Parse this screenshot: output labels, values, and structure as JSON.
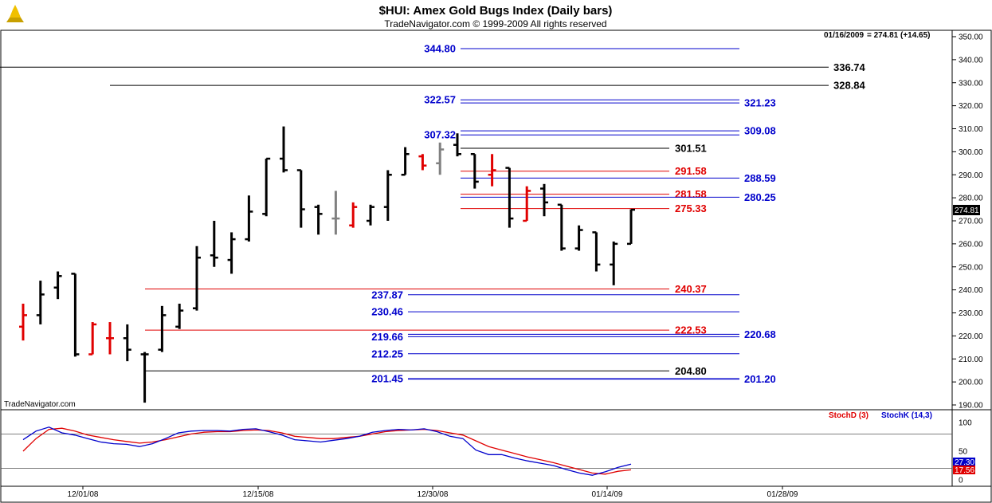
{
  "header": {
    "title": "$HUI:  Amex Gold Bugs Index  (Daily bars)",
    "subtitle": "TradeNavigator.com © 1999-2009 All rights reserved",
    "watermark": "TradeNavigator.com"
  },
  "readout": {
    "date_text": "01/16/2009",
    "value_text": "= 274.81 (+14.65)",
    "last_price_label": "274.81"
  },
  "colors": {
    "up_bar": "#000000",
    "down_bar": "#e00000",
    "neutral_bar": "#808080",
    "blue_level": "#0000cc",
    "red_level": "#e00000",
    "black_level": "#000000",
    "stoch_d": "#e00000",
    "stoch_k": "#0000cc"
  },
  "chart_data": [
    {
      "type": "ohlc",
      "title": "$HUI:  Amex Gold Bugs Index  (Daily bars)",
      "ylim": [
        185,
        353
      ],
      "y_ticks": [
        "350.00",
        "340.00",
        "330.00",
        "320.00",
        "310.00",
        "300.00",
        "290.00",
        "280.00",
        "270.00",
        "260.00",
        "250.00",
        "240.00",
        "230.00",
        "220.00",
        "210.00",
        "200.00",
        "190.00"
      ],
      "x_ticks": [
        "12/01/08",
        "12/15/08",
        "12/30/08",
        "01/14/09",
        "01/28/09"
      ],
      "bars": [
        {
          "o": 224,
          "h": 234,
          "l": 218,
          "c": 229,
          "col": "down"
        },
        {
          "o": 229,
          "h": 244,
          "l": 225,
          "c": 238,
          "col": "up"
        },
        {
          "o": 241,
          "h": 248,
          "l": 236,
          "c": 246,
          "col": "up"
        },
        {
          "o": 247,
          "h": 247,
          "l": 211,
          "c": 212,
          "col": "up"
        },
        {
          "o": 212,
          "h": 226,
          "l": 212,
          "c": 225,
          "col": "down"
        },
        {
          "o": 219,
          "h": 226,
          "l": 212,
          "c": 219,
          "col": "down"
        },
        {
          "o": 219,
          "h": 225,
          "l": 209,
          "c": 214,
          "col": "up"
        },
        {
          "o": 212,
          "h": 213,
          "l": 191,
          "c": 212,
          "col": "up"
        },
        {
          "o": 214,
          "h": 233,
          "l": 213,
          "c": 229,
          "col": "up"
        },
        {
          "o": 224,
          "h": 234,
          "l": 223,
          "c": 231,
          "col": "up"
        },
        {
          "o": 232,
          "h": 259,
          "l": 231,
          "c": 254,
          "col": "up"
        },
        {
          "o": 255,
          "h": 270,
          "l": 250,
          "c": 254,
          "col": "up"
        },
        {
          "o": 253,
          "h": 265,
          "l": 247,
          "c": 262,
          "col": "up"
        },
        {
          "o": 262,
          "h": 281,
          "l": 261,
          "c": 274,
          "col": "up"
        },
        {
          "o": 273,
          "h": 297,
          "l": 272,
          "c": 297,
          "col": "up"
        },
        {
          "o": 297,
          "h": 311,
          "l": 291,
          "c": 292,
          "col": "up"
        },
        {
          "o": 292,
          "h": 292,
          "l": 267,
          "c": 275,
          "col": "up"
        },
        {
          "o": 276,
          "h": 277,
          "l": 264,
          "c": 273,
          "col": "up"
        },
        {
          "o": 271,
          "h": 283,
          "l": 264,
          "c": 271,
          "col": "neutral"
        },
        {
          "o": 268,
          "h": 278,
          "l": 267,
          "c": 276,
          "col": "down"
        },
        {
          "o": 270,
          "h": 277,
          "l": 268,
          "c": 276,
          "col": "up"
        },
        {
          "o": 276,
          "h": 292,
          "l": 270,
          "c": 290,
          "col": "up"
        },
        {
          "o": 290,
          "h": 302,
          "l": 290,
          "c": 299,
          "col": "up"
        },
        {
          "o": 298,
          "h": 299,
          "l": 292,
          "c": 294,
          "col": "down"
        },
        {
          "o": 295,
          "h": 304,
          "l": 290,
          "c": 301,
          "col": "neutral"
        },
        {
          "o": 303,
          "h": 308,
          "l": 298,
          "c": 299,
          "col": "up"
        },
        {
          "o": 299,
          "h": 299,
          "l": 284,
          "c": 287,
          "col": "up"
        },
        {
          "o": 290,
          "h": 299,
          "l": 285,
          "c": 292,
          "col": "down"
        },
        {
          "o": 293,
          "h": 293,
          "l": 267,
          "c": 271,
          "col": "up"
        },
        {
          "o": 270,
          "h": 285,
          "l": 270,
          "c": 283,
          "col": "down"
        },
        {
          "o": 284,
          "h": 286,
          "l": 272,
          "c": 278,
          "col": "up"
        },
        {
          "o": 277,
          "h": 277,
          "l": 257,
          "c": 258,
          "col": "up"
        },
        {
          "o": 258,
          "h": 268,
          "l": 257,
          "c": 266,
          "col": "up"
        },
        {
          "o": 265,
          "h": 265,
          "l": 248,
          "c": 251,
          "col": "up"
        },
        {
          "o": 251,
          "h": 261,
          "l": 242,
          "c": 260,
          "col": "up"
        },
        {
          "o": 260,
          "h": 275,
          "l": 260,
          "c": 274.81,
          "col": "up"
        }
      ],
      "levels": [
        {
          "value": 344.8,
          "label": "344.80",
          "color": "blue",
          "label_side": "left",
          "x0": 578,
          "x1": 928
        },
        {
          "value": 336.74,
          "label": "336.74",
          "color": "black",
          "label_side": "right",
          "x0": 0,
          "x1": 1040
        },
        {
          "value": 328.84,
          "label": "328.84",
          "color": "black",
          "label_side": "right",
          "x0": 138,
          "x1": 1040
        },
        {
          "value": 322.57,
          "label": "322.57",
          "color": "blue",
          "label_side": "left",
          "x0": 578,
          "x1": 928
        },
        {
          "value": 321.23,
          "label": "321.23",
          "color": "blue",
          "label_side": "right",
          "x0": 578,
          "x1": 928
        },
        {
          "value": 309.08,
          "label": "309.08",
          "color": "blue",
          "label_side": "right",
          "x0": 578,
          "x1": 928
        },
        {
          "value": 307.32,
          "label": "307.32",
          "color": "blue",
          "label_side": "left",
          "x0": 578,
          "x1": 928
        },
        {
          "value": 301.51,
          "label": "301.51",
          "color": "black",
          "label_side": "mid",
          "x0": 578,
          "x1": 840
        },
        {
          "value": 291.58,
          "label": "291.58",
          "color": "red",
          "label_side": "mid",
          "x0": 578,
          "x1": 840
        },
        {
          "value": 288.59,
          "label": "288.59",
          "color": "blue",
          "label_side": "right",
          "x0": 578,
          "x1": 928
        },
        {
          "value": 281.58,
          "label": "281.58",
          "color": "red",
          "label_side": "mid",
          "x0": 578,
          "x1": 840
        },
        {
          "value": 280.25,
          "label": "280.25",
          "color": "blue",
          "label_side": "right",
          "x0": 578,
          "x1": 928
        },
        {
          "value": 275.33,
          "label": "275.33",
          "color": "red",
          "label_side": "mid",
          "x0": 578,
          "x1": 840
        },
        {
          "value": 240.37,
          "label": "240.37",
          "color": "red",
          "label_side": "mid",
          "x0": 182,
          "x1": 840
        },
        {
          "value": 237.87,
          "label": "237.87",
          "color": "blue",
          "label_side": "left",
          "x0": 512,
          "x1": 928
        },
        {
          "value": 230.46,
          "label": "230.46",
          "color": "blue",
          "label_side": "left",
          "x0": 512,
          "x1": 928
        },
        {
          "value": 222.53,
          "label": "222.53",
          "color": "red",
          "label_side": "mid",
          "x0": 182,
          "x1": 840
        },
        {
          "value": 220.68,
          "label": "220.68",
          "color": "blue",
          "label_side": "right",
          "x0": 512,
          "x1": 928
        },
        {
          "value": 219.66,
          "label": "219.66",
          "color": "blue",
          "label_side": "left",
          "x0": 512,
          "x1": 928
        },
        {
          "value": 212.25,
          "label": "212.25",
          "color": "blue",
          "label_side": "left",
          "x0": 512,
          "x1": 928
        },
        {
          "value": 204.8,
          "label": "204.80",
          "color": "black",
          "label_side": "mid",
          "x0": 182,
          "x1": 840
        },
        {
          "value": 201.45,
          "label": "201.45",
          "color": "blue",
          "label_side": "left",
          "x0": 512,
          "x1": 928
        },
        {
          "value": 201.2,
          "label": "201.20",
          "color": "blue",
          "label_side": "right",
          "x0": 512,
          "x1": 928
        }
      ]
    },
    {
      "type": "line",
      "legend": [
        "StochD (3)",
        "StochK (14,3)"
      ],
      "ylim": [
        0,
        110
      ],
      "y_ticks": [
        "100",
        "50",
        "0"
      ],
      "last_labels": [
        "27.30",
        "17.56"
      ],
      "series": [
        {
          "name": "StochD (3)",
          "color": "red",
          "values": [
            50,
            72,
            88,
            90,
            85,
            78,
            74,
            70,
            67,
            64,
            66,
            70,
            75,
            80,
            83,
            84,
            84,
            86,
            87,
            86,
            82,
            76,
            74,
            72,
            72,
            74,
            76,
            80,
            84,
            86,
            87,
            88,
            86,
            82,
            78,
            68,
            58,
            52,
            46,
            40,
            35,
            30,
            24,
            18,
            12,
            10,
            15,
            17.56
          ]
        },
        {
          "name": "StochK (14,3)",
          "color": "blue",
          "values": [
            70,
            85,
            92,
            82,
            78,
            72,
            66,
            63,
            62,
            58,
            63,
            72,
            82,
            85,
            86,
            86,
            85,
            88,
            89,
            84,
            78,
            70,
            68,
            66,
            69,
            72,
            76,
            83,
            86,
            88,
            87,
            89,
            84,
            76,
            72,
            52,
            44,
            44,
            38,
            33,
            29,
            25,
            18,
            12,
            8,
            14,
            22,
            27.3
          ]
        }
      ]
    }
  ]
}
